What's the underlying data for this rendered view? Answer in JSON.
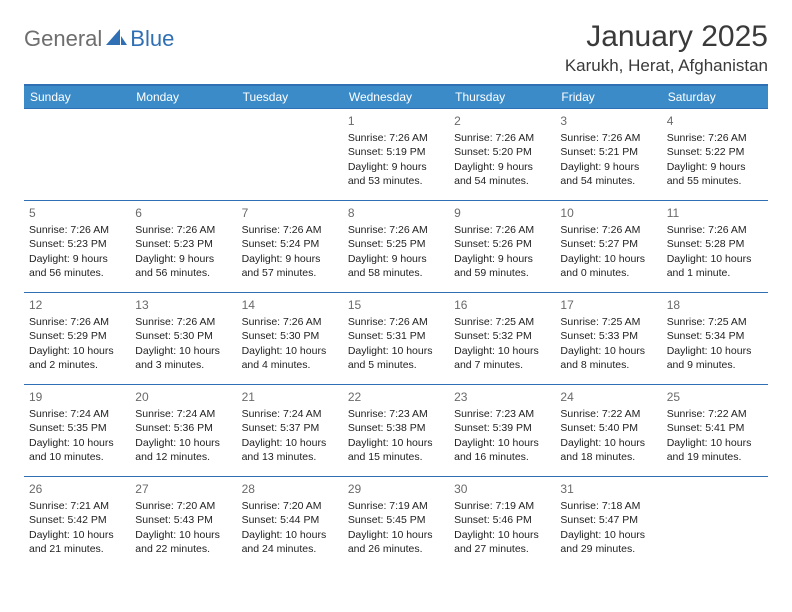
{
  "brand": {
    "part1": "General",
    "part2": "Blue"
  },
  "title": "January 2025",
  "location": "Karukh, Herat, Afghanistan",
  "colors": {
    "header_bg": "#3b8bc9",
    "header_border": "#2f6fb3",
    "cell_border": "#2f6fb3",
    "logo_gray": "#6e6e6e",
    "logo_blue": "#2f6fb3",
    "daynum": "#6a6a6a",
    "text": "#222222",
    "bg": "#ffffff"
  },
  "weekdays": [
    "Sunday",
    "Monday",
    "Tuesday",
    "Wednesday",
    "Thursday",
    "Friday",
    "Saturday"
  ],
  "weeks": [
    [
      {},
      {},
      {},
      {
        "day": "1",
        "sunrise": "Sunrise: 7:26 AM",
        "sunset": "Sunset: 5:19 PM",
        "daylight": "Daylight: 9 hours and 53 minutes."
      },
      {
        "day": "2",
        "sunrise": "Sunrise: 7:26 AM",
        "sunset": "Sunset: 5:20 PM",
        "daylight": "Daylight: 9 hours and 54 minutes."
      },
      {
        "day": "3",
        "sunrise": "Sunrise: 7:26 AM",
        "sunset": "Sunset: 5:21 PM",
        "daylight": "Daylight: 9 hours and 54 minutes."
      },
      {
        "day": "4",
        "sunrise": "Sunrise: 7:26 AM",
        "sunset": "Sunset: 5:22 PM",
        "daylight": "Daylight: 9 hours and 55 minutes."
      }
    ],
    [
      {
        "day": "5",
        "sunrise": "Sunrise: 7:26 AM",
        "sunset": "Sunset: 5:23 PM",
        "daylight": "Daylight: 9 hours and 56 minutes."
      },
      {
        "day": "6",
        "sunrise": "Sunrise: 7:26 AM",
        "sunset": "Sunset: 5:23 PM",
        "daylight": "Daylight: 9 hours and 56 minutes."
      },
      {
        "day": "7",
        "sunrise": "Sunrise: 7:26 AM",
        "sunset": "Sunset: 5:24 PM",
        "daylight": "Daylight: 9 hours and 57 minutes."
      },
      {
        "day": "8",
        "sunrise": "Sunrise: 7:26 AM",
        "sunset": "Sunset: 5:25 PM",
        "daylight": "Daylight: 9 hours and 58 minutes."
      },
      {
        "day": "9",
        "sunrise": "Sunrise: 7:26 AM",
        "sunset": "Sunset: 5:26 PM",
        "daylight": "Daylight: 9 hours and 59 minutes."
      },
      {
        "day": "10",
        "sunrise": "Sunrise: 7:26 AM",
        "sunset": "Sunset: 5:27 PM",
        "daylight": "Daylight: 10 hours and 0 minutes."
      },
      {
        "day": "11",
        "sunrise": "Sunrise: 7:26 AM",
        "sunset": "Sunset: 5:28 PM",
        "daylight": "Daylight: 10 hours and 1 minute."
      }
    ],
    [
      {
        "day": "12",
        "sunrise": "Sunrise: 7:26 AM",
        "sunset": "Sunset: 5:29 PM",
        "daylight": "Daylight: 10 hours and 2 minutes."
      },
      {
        "day": "13",
        "sunrise": "Sunrise: 7:26 AM",
        "sunset": "Sunset: 5:30 PM",
        "daylight": "Daylight: 10 hours and 3 minutes."
      },
      {
        "day": "14",
        "sunrise": "Sunrise: 7:26 AM",
        "sunset": "Sunset: 5:30 PM",
        "daylight": "Daylight: 10 hours and 4 minutes."
      },
      {
        "day": "15",
        "sunrise": "Sunrise: 7:26 AM",
        "sunset": "Sunset: 5:31 PM",
        "daylight": "Daylight: 10 hours and 5 minutes."
      },
      {
        "day": "16",
        "sunrise": "Sunrise: 7:25 AM",
        "sunset": "Sunset: 5:32 PM",
        "daylight": "Daylight: 10 hours and 7 minutes."
      },
      {
        "day": "17",
        "sunrise": "Sunrise: 7:25 AM",
        "sunset": "Sunset: 5:33 PM",
        "daylight": "Daylight: 10 hours and 8 minutes."
      },
      {
        "day": "18",
        "sunrise": "Sunrise: 7:25 AM",
        "sunset": "Sunset: 5:34 PM",
        "daylight": "Daylight: 10 hours and 9 minutes."
      }
    ],
    [
      {
        "day": "19",
        "sunrise": "Sunrise: 7:24 AM",
        "sunset": "Sunset: 5:35 PM",
        "daylight": "Daylight: 10 hours and 10 minutes."
      },
      {
        "day": "20",
        "sunrise": "Sunrise: 7:24 AM",
        "sunset": "Sunset: 5:36 PM",
        "daylight": "Daylight: 10 hours and 12 minutes."
      },
      {
        "day": "21",
        "sunrise": "Sunrise: 7:24 AM",
        "sunset": "Sunset: 5:37 PM",
        "daylight": "Daylight: 10 hours and 13 minutes."
      },
      {
        "day": "22",
        "sunrise": "Sunrise: 7:23 AM",
        "sunset": "Sunset: 5:38 PM",
        "daylight": "Daylight: 10 hours and 15 minutes."
      },
      {
        "day": "23",
        "sunrise": "Sunrise: 7:23 AM",
        "sunset": "Sunset: 5:39 PM",
        "daylight": "Daylight: 10 hours and 16 minutes."
      },
      {
        "day": "24",
        "sunrise": "Sunrise: 7:22 AM",
        "sunset": "Sunset: 5:40 PM",
        "daylight": "Daylight: 10 hours and 18 minutes."
      },
      {
        "day": "25",
        "sunrise": "Sunrise: 7:22 AM",
        "sunset": "Sunset: 5:41 PM",
        "daylight": "Daylight: 10 hours and 19 minutes."
      }
    ],
    [
      {
        "day": "26",
        "sunrise": "Sunrise: 7:21 AM",
        "sunset": "Sunset: 5:42 PM",
        "daylight": "Daylight: 10 hours and 21 minutes."
      },
      {
        "day": "27",
        "sunrise": "Sunrise: 7:20 AM",
        "sunset": "Sunset: 5:43 PM",
        "daylight": "Daylight: 10 hours and 22 minutes."
      },
      {
        "day": "28",
        "sunrise": "Sunrise: 7:20 AM",
        "sunset": "Sunset: 5:44 PM",
        "daylight": "Daylight: 10 hours and 24 minutes."
      },
      {
        "day": "29",
        "sunrise": "Sunrise: 7:19 AM",
        "sunset": "Sunset: 5:45 PM",
        "daylight": "Daylight: 10 hours and 26 minutes."
      },
      {
        "day": "30",
        "sunrise": "Sunrise: 7:19 AM",
        "sunset": "Sunset: 5:46 PM",
        "daylight": "Daylight: 10 hours and 27 minutes."
      },
      {
        "day": "31",
        "sunrise": "Sunrise: 7:18 AM",
        "sunset": "Sunset: 5:47 PM",
        "daylight": "Daylight: 10 hours and 29 minutes."
      },
      {}
    ]
  ]
}
